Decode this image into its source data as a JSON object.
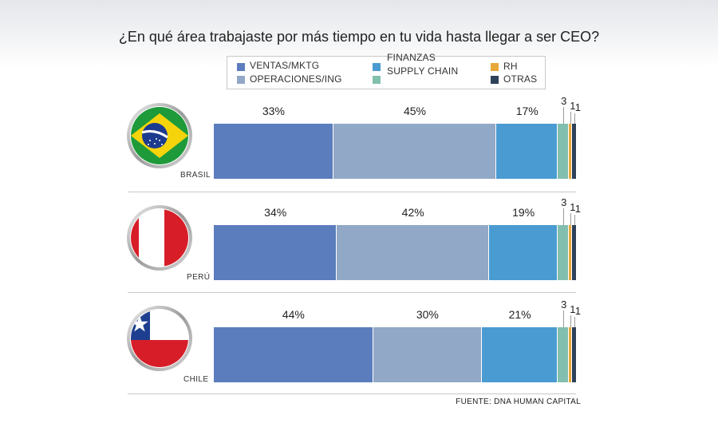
{
  "title": "¿En qué área trabajaste por más tiempo en tu vida hasta llegar a ser CEO?",
  "legend": [
    {
      "label": "VENTAS/MKTG",
      "color": "#5b7dbd"
    },
    {
      "label": "OPERACIONES/ING",
      "color": "#92a8c7"
    },
    {
      "label": "FINANZAS",
      "color": "#4a9bd1"
    },
    {
      "label": "SUPPLY CHAIN",
      "color": "#82bfae"
    },
    {
      "label": "RH",
      "color": "#e8a93a"
    },
    {
      "label": "OTRAS",
      "color": "#2f4159"
    }
  ],
  "countries": [
    {
      "name": "BRASIL",
      "flag": "brazil-flag"
    },
    {
      "name": "PERÚ",
      "flag": "peru-flag"
    },
    {
      "name": "CHILE",
      "flag": "chile-flag"
    }
  ],
  "chart_data": {
    "type": "bar",
    "orientation": "horizontal-stacked",
    "title": "¿En qué área trabajaste por más tiempo en tu vida hasta llegar a ser CEO?",
    "categories": [
      "BRASIL",
      "PERÚ",
      "CHILE"
    ],
    "series": [
      {
        "name": "VENTAS/MKTG",
        "values": [
          33,
          34,
          44
        ],
        "labels": [
          "33%",
          "34%",
          "44%"
        ]
      },
      {
        "name": "OPERACIONES/ING",
        "values": [
          45,
          42,
          30
        ],
        "labels": [
          "45%",
          "42%",
          "30%"
        ]
      },
      {
        "name": "FINANZAS",
        "values": [
          17,
          19,
          21
        ],
        "labels": [
          "17%",
          "19%",
          "21%"
        ]
      },
      {
        "name": "SUPPLY CHAIN",
        "values": [
          3,
          3,
          3
        ],
        "labels": [
          "3",
          "3",
          "3"
        ]
      },
      {
        "name": "RH",
        "values": [
          1,
          1,
          1
        ],
        "labels": [
          "1",
          "1",
          "1"
        ]
      },
      {
        "name": "OTRAS",
        "values": [
          1,
          1,
          1
        ],
        "labels": [
          "1",
          "1",
          "1"
        ]
      }
    ],
    "xlim": [
      0,
      100
    ],
    "grid": false,
    "legend": "top"
  },
  "source": "FUENTE: DNA HUMAN CAPITAL"
}
